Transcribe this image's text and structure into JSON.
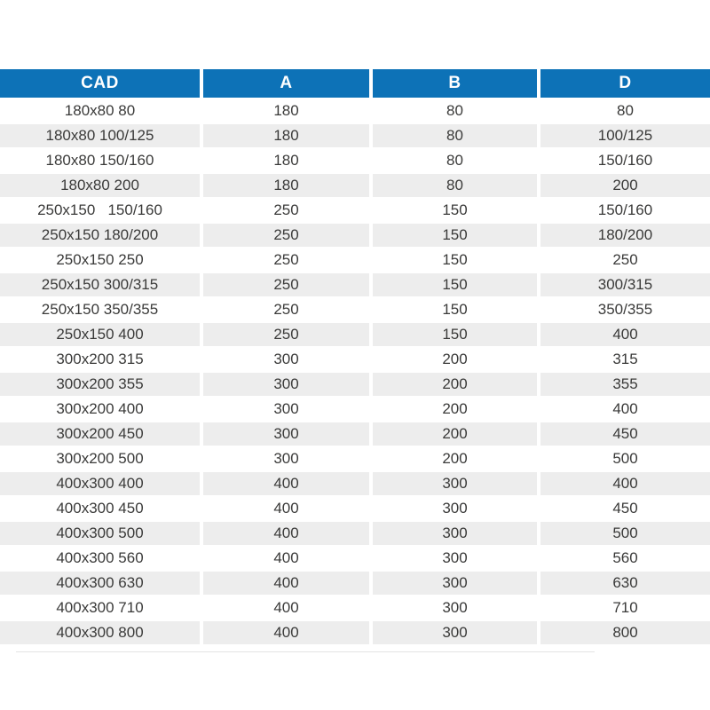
{
  "table": {
    "columns": [
      {
        "key": "cad",
        "label": "CAD"
      },
      {
        "key": "a",
        "label": "A"
      },
      {
        "key": "b",
        "label": "B"
      },
      {
        "key": "d",
        "label": "D"
      }
    ],
    "rows": [
      {
        "cad": "180x80 80",
        "a": "180",
        "b": "80",
        "d": "80"
      },
      {
        "cad": "180x80 100/125",
        "a": "180",
        "b": "80",
        "d": "100/125"
      },
      {
        "cad": "180x80 150/160",
        "a": "180",
        "b": "80",
        "d": "150/160"
      },
      {
        "cad": "180x80 200",
        "a": "180",
        "b": "80",
        "d": "200"
      },
      {
        "cad": "250x150   150/160",
        "a": "250",
        "b": "150",
        "d": "150/160"
      },
      {
        "cad": "250x150 180/200",
        "a": "250",
        "b": "150",
        "d": "180/200"
      },
      {
        "cad": "250x150 250",
        "a": "250",
        "b": "150",
        "d": "250"
      },
      {
        "cad": "250x150 300/315",
        "a": "250",
        "b": "150",
        "d": "300/315"
      },
      {
        "cad": "250x150 350/355",
        "a": "250",
        "b": "150",
        "d": "350/355"
      },
      {
        "cad": "250x150 400",
        "a": "250",
        "b": "150",
        "d": "400"
      },
      {
        "cad": "300x200 315",
        "a": "300",
        "b": "200",
        "d": "315"
      },
      {
        "cad": "300x200 355",
        "a": "300",
        "b": "200",
        "d": "355"
      },
      {
        "cad": "300x200 400",
        "a": "300",
        "b": "200",
        "d": "400"
      },
      {
        "cad": "300x200 450",
        "a": "300",
        "b": "200",
        "d": "450"
      },
      {
        "cad": "300x200 500",
        "a": "300",
        "b": "200",
        "d": "500"
      },
      {
        "cad": "400x300 400",
        "a": "400",
        "b": "300",
        "d": "400"
      },
      {
        "cad": "400x300 450",
        "a": "400",
        "b": "300",
        "d": "450"
      },
      {
        "cad": "400x300 500",
        "a": "400",
        "b": "300",
        "d": "500"
      },
      {
        "cad": "400x300 560",
        "a": "400",
        "b": "300",
        "d": "560"
      },
      {
        "cad": "400x300 630",
        "a": "400",
        "b": "300",
        "d": "630"
      },
      {
        "cad": "400x300 710",
        "a": "400",
        "b": "300",
        "d": "710"
      },
      {
        "cad": "400x300 800",
        "a": "400",
        "b": "300",
        "d": "800"
      }
    ],
    "colors": {
      "header_bg": "#0D72B7",
      "header_text": "#FFFFFF",
      "row_bg": "#FFFFFF",
      "row_alt_bg": "#EDEDED",
      "cell_text": "#3A3A39"
    }
  }
}
